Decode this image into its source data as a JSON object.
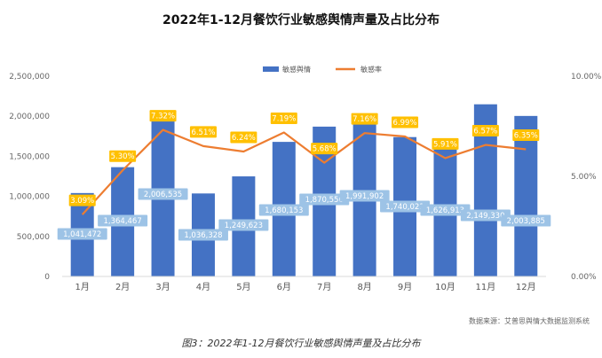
{
  "title": "2022年1-12月餐饮行业敏感舆情声量及占比分布",
  "source": "数据来源：艾普思舆情大数据监测系统",
  "caption": "图3：2022年1-12月餐饮行业敏感舆情声量及占比分布",
  "colors": {
    "bar": "#4472C4",
    "line": "#ED7D31",
    "pct_label_bg": "#FFC000",
    "value_label_bg": "#9DC3E6"
  },
  "chart_data": {
    "type": "bar",
    "categories": [
      "1月",
      "2月",
      "3月",
      "4月",
      "5月",
      "6月",
      "7月",
      "8月",
      "9月",
      "10月",
      "11月",
      "12月"
    ],
    "series": [
      {
        "name": "敏感舆情",
        "type": "bar",
        "axis": "left",
        "values": [
          1041472,
          1364467,
          2006535,
          1036328,
          1249623,
          1680153,
          1870556,
          1991902,
          1740021,
          1626913,
          2149330,
          2003885
        ],
        "labels": [
          "1,041,472",
          "1,364,467",
          "2,006,535",
          "1,036,328",
          "1,249,623",
          "1,680,153",
          "1,870,556",
          "1,991,902",
          "1,740,021",
          "1,626,913",
          "2,149,330",
          "2,003,885"
        ]
      },
      {
        "name": "敏感率",
        "type": "line",
        "axis": "right",
        "values": [
          3.09,
          5.3,
          7.32,
          6.51,
          6.24,
          7.19,
          5.68,
          7.16,
          6.99,
          5.91,
          6.57,
          6.35
        ],
        "labels": [
          "3.09%",
          "5.30%",
          "7.32%",
          "6.51%",
          "6.24%",
          "7.19%",
          "5.68%",
          "7.16%",
          "6.99%",
          "5.91%",
          "6.57%",
          "6.35%"
        ]
      }
    ],
    "ylim_left": [
      0,
      2500000
    ],
    "ylim_right": [
      0,
      10
    ],
    "left_ticks": [
      "0",
      "500,000",
      "1,000,000",
      "1,500,000",
      "2,000,000",
      "2,500,000"
    ],
    "left_tick_values": [
      0,
      500000,
      1000000,
      1500000,
      2000000,
      2500000
    ],
    "right_ticks": [
      "0.00%",
      "5.00%",
      "10.00%"
    ],
    "right_tick_values": [
      0,
      5,
      10
    ],
    "legend_position": "top",
    "grid": false
  }
}
